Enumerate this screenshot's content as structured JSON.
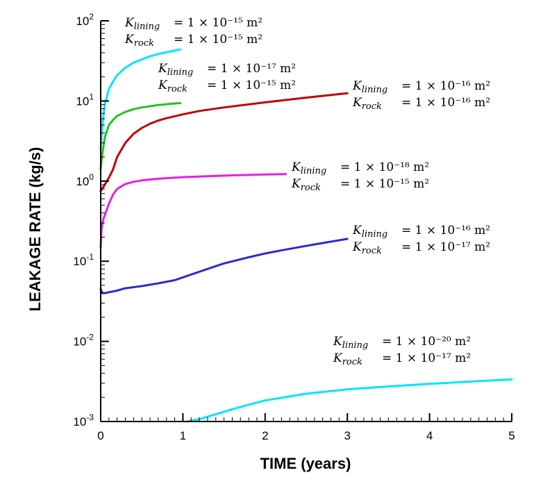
{
  "chart_data": {
    "type": "line",
    "xlabel": "TIME (years)",
    "ylabel": "LEAKAGE RATE (kg/s)",
    "xlim": [
      0,
      5
    ],
    "ylim": [
      0.001,
      100
    ],
    "yscale": "log",
    "grid": false,
    "legend": "none",
    "x_ticks": [
      "0",
      "1",
      "2",
      "3",
      "4",
      "5"
    ],
    "y_ticks": [
      {
        "base": "10",
        "exp": "2",
        "value": 100
      },
      {
        "base": "10",
        "exp": "1",
        "value": 10
      },
      {
        "base": "10",
        "exp": "0",
        "value": 1
      },
      {
        "base": "10",
        "exp": "-1",
        "value": 0.1
      },
      {
        "base": "10",
        "exp": "-2",
        "value": 0.01
      },
      {
        "base": "10",
        "exp": "-3",
        "value": 0.001
      }
    ],
    "series": [
      {
        "color": "#00e5ff",
        "label_lining": "1 × 10⁻¹⁵ m²",
        "label_rock": "1 × 10⁻¹⁵ m²",
        "x": [
          0.0,
          0.02,
          0.05,
          0.1,
          0.15,
          0.2,
          0.3,
          0.4,
          0.5,
          0.6,
          0.7,
          0.8,
          0.9,
          0.97
        ],
        "y": [
          2.5,
          5,
          9,
          14,
          17.5,
          21,
          26,
          30,
          33,
          36,
          38.5,
          40.5,
          42.5,
          44
        ]
      },
      {
        "color": "#22c322",
        "label_lining": "1 × 10⁻¹⁷ m²",
        "label_rock": "1 × 10⁻¹⁵ m²",
        "x": [
          0.0,
          0.02,
          0.05,
          0.1,
          0.15,
          0.2,
          0.3,
          0.4,
          0.5,
          0.6,
          0.7,
          0.8,
          0.9,
          0.97
        ],
        "y": [
          1.4,
          2.2,
          3.5,
          5,
          5.8,
          6.5,
          7.3,
          7.9,
          8.3,
          8.6,
          8.9,
          9.1,
          9.3,
          9.4
        ]
      },
      {
        "color": "#c00000",
        "label_lining": "1 × 10⁻¹⁶ m²",
        "label_rock": "1 × 10⁻¹⁶ m²",
        "x": [
          0.0,
          0.05,
          0.1,
          0.15,
          0.2,
          0.3,
          0.4,
          0.5,
          0.6,
          0.7,
          0.8,
          1.0,
          1.2,
          1.5,
          2.0,
          2.5,
          3.0
        ],
        "y": [
          0.75,
          0.9,
          1.1,
          1.4,
          2.0,
          3.0,
          3.9,
          4.6,
          5.2,
          5.7,
          6.1,
          6.8,
          7.5,
          8.3,
          9.6,
          11,
          12.5
        ]
      },
      {
        "color": "#e61ee6",
        "label_lining": "1 × 10⁻¹⁸ m²",
        "label_rock": "1 × 10⁻¹⁵ m²",
        "x": [
          0.0,
          0.01,
          0.03,
          0.06,
          0.1,
          0.15,
          0.2,
          0.3,
          0.4,
          0.5,
          0.7,
          1.0,
          1.3,
          1.6,
          2.0,
          2.25
        ],
        "y": [
          0.15,
          0.25,
          0.33,
          0.4,
          0.52,
          0.68,
          0.8,
          0.92,
          0.98,
          1.02,
          1.07,
          1.12,
          1.15,
          1.18,
          1.21,
          1.22
        ]
      },
      {
        "color": "#2a2ad8",
        "label_lining": "1 × 10⁻¹⁶ m²",
        "label_rock": "1 × 10⁻¹⁷ m²",
        "x": [
          0.0,
          0.02,
          0.05,
          0.1,
          0.2,
          0.3,
          0.5,
          0.7,
          0.9,
          1.0,
          1.2,
          1.5,
          1.8,
          2.0,
          2.3,
          2.6,
          3.0
        ],
        "y": [
          0.045,
          0.04,
          0.04,
          0.041,
          0.043,
          0.046,
          0.049,
          0.053,
          0.058,
          0.063,
          0.074,
          0.094,
          0.112,
          0.125,
          0.143,
          0.162,
          0.19
        ]
      },
      {
        "color": "#00e5ff",
        "label_lining": "1 × 10⁻²⁰ m²",
        "label_rock": "1 × 10⁻¹⁷ m²",
        "x": [
          1.05,
          1.2,
          1.4,
          1.6,
          1.8,
          2.0,
          2.5,
          3.0,
          3.5,
          4.0,
          4.5,
          5.0
        ],
        "y": [
          0.001,
          0.00107,
          0.00123,
          0.00142,
          0.00162,
          0.00183,
          0.00222,
          0.00252,
          0.00274,
          0.00295,
          0.00315,
          0.00335
        ]
      }
    ],
    "annotations": [
      {
        "lining_sym": "K",
        "lining_sub": "lining",
        "rock_sym": "K",
        "rock_sub": "rock",
        "eq": "=",
        "lining_val": "1 × 10⁻¹⁵ m²",
        "rock_val": "1 × 10⁻¹⁵ m²"
      },
      {
        "lining_sym": "K",
        "lining_sub": "lining",
        "rock_sym": "K",
        "rock_sub": "rock",
        "eq": "=",
        "lining_val": "1 × 10⁻¹⁷ m²",
        "rock_val": "1 × 10⁻¹⁵ m²"
      },
      {
        "lining_sym": "K",
        "lining_sub": "lining",
        "rock_sym": "K",
        "rock_sub": "rock",
        "eq": "=",
        "lining_val": "1 × 10⁻¹⁶ m²",
        "rock_val": "1 × 10⁻¹⁶ m²"
      },
      {
        "lining_sym": "K",
        "lining_sub": "lining",
        "rock_sym": "K",
        "rock_sub": "rock",
        "eq": "=",
        "lining_val": "1 × 10⁻¹⁸ m²",
        "rock_val": "1 × 10⁻¹⁵ m²"
      },
      {
        "lining_sym": "K",
        "lining_sub": "lining",
        "rock_sym": "K",
        "rock_sub": "rock",
        "eq": "=",
        "lining_val": "1 × 10⁻¹⁶ m²",
        "rock_val": "1 × 10⁻¹⁷ m²"
      },
      {
        "lining_sym": "K",
        "lining_sub": "lining",
        "rock_sym": "K",
        "rock_sub": "rock",
        "eq": "=",
        "lining_val": "1 × 10⁻²⁰ m²",
        "rock_val": "1 × 10⁻¹⁷ m²"
      }
    ]
  }
}
